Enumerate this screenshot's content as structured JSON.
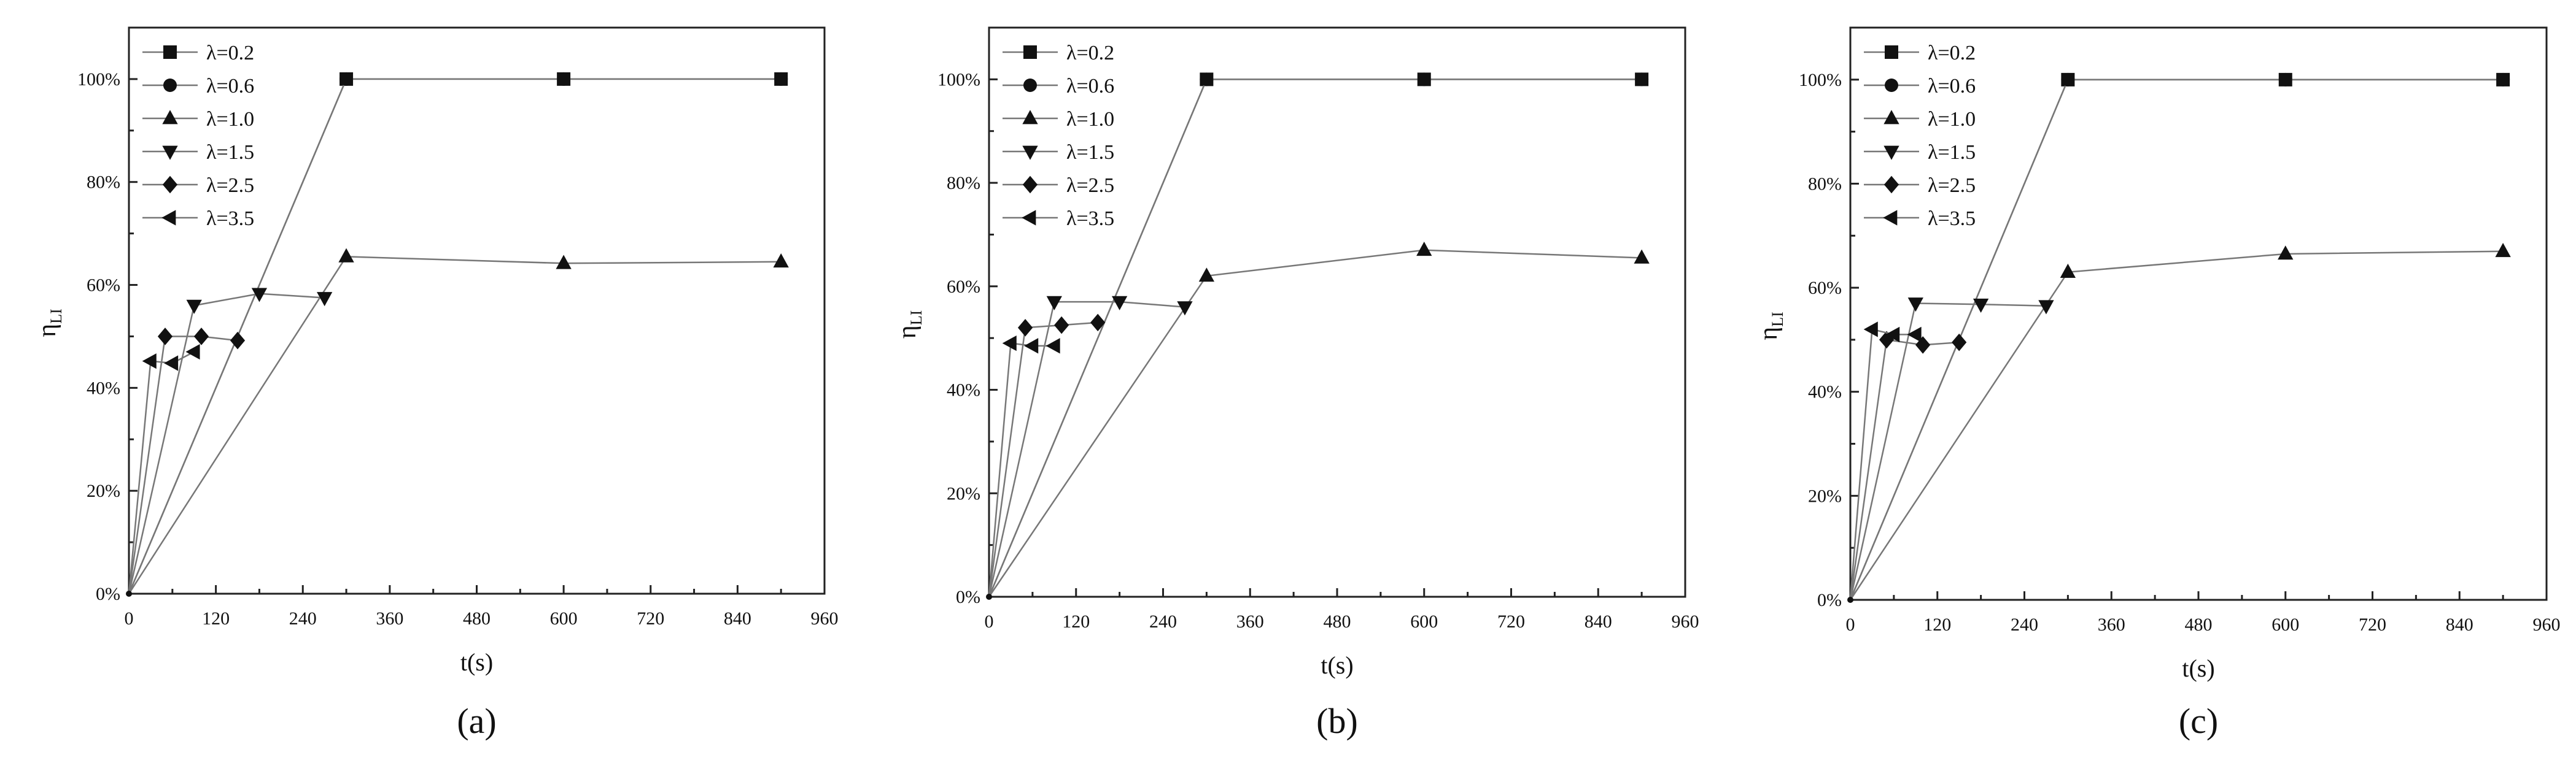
{
  "chart_data": [
    {
      "panel_label": "(a)",
      "type": "line",
      "xlabel": "t(s)",
      "ylabel": "η_LI",
      "ylabel_main": "η",
      "ylabel_sub": "LI",
      "xlim": [
        0,
        960
      ],
      "ylim": [
        0,
        1.1
      ],
      "x_ticks": [
        "0",
        "120",
        "240",
        "360",
        "480",
        "600",
        "720",
        "840",
        "960"
      ],
      "y_ticks": [
        "0%",
        "20%",
        "40%",
        "60%",
        "80%",
        "100%"
      ],
      "grid": false,
      "legend_position": "top-left",
      "series": [
        {
          "name": "λ=0.2",
          "marker": "square",
          "points": [
            [
              0,
              0
            ],
            [
              300,
              1.0
            ],
            [
              600,
              1.0
            ],
            [
              900,
              1.0
            ]
          ]
        },
        {
          "name": "λ=0.6",
          "marker": "circle",
          "points": [
            [
              0,
              0
            ],
            [
              300,
              1.0
            ],
            [
              600,
              1.0
            ],
            [
              900,
              1.0
            ]
          ]
        },
        {
          "name": "λ=1.0",
          "marker": "triangle-up",
          "points": [
            [
              0,
              0
            ],
            [
              300,
              0.655
            ],
            [
              600,
              0.642
            ],
            [
              900,
              0.645
            ]
          ]
        },
        {
          "name": "λ=1.5",
          "marker": "triangle-down",
          "points": [
            [
              0,
              0
            ],
            [
              90,
              0.56
            ],
            [
              180,
              0.583
            ],
            [
              270,
              0.575
            ]
          ]
        },
        {
          "name": "λ=2.5",
          "marker": "diamond",
          "points": [
            [
              0,
              0
            ],
            [
              50,
              0.5
            ],
            [
              100,
              0.5
            ],
            [
              150,
              0.492
            ]
          ]
        },
        {
          "name": "λ=3.5",
          "marker": "triangle-left",
          "points": [
            [
              0,
              0
            ],
            [
              30,
              0.452
            ],
            [
              60,
              0.448
            ],
            [
              90,
              0.47
            ]
          ]
        }
      ]
    },
    {
      "panel_label": "(b)",
      "type": "line",
      "xlabel": "t(s)",
      "ylabel": "η_LI",
      "ylabel_main": "η",
      "ylabel_sub": "LI",
      "xlim": [
        0,
        960
      ],
      "ylim": [
        0,
        1.1
      ],
      "x_ticks": [
        "0",
        "120",
        "240",
        "360",
        "480",
        "600",
        "720",
        "840",
        "960"
      ],
      "y_ticks": [
        "0%",
        "20%",
        "40%",
        "60%",
        "80%",
        "100%"
      ],
      "grid": false,
      "legend_position": "top-left",
      "series": [
        {
          "name": "λ=0.2",
          "marker": "square",
          "points": [
            [
              0,
              0
            ],
            [
              300,
              1.0
            ],
            [
              600,
              1.0
            ],
            [
              900,
              1.0
            ]
          ]
        },
        {
          "name": "λ=0.6",
          "marker": "circle",
          "points": [
            [
              0,
              0
            ],
            [
              300,
              1.0
            ],
            [
              600,
              1.0
            ],
            [
              900,
              1.0
            ]
          ]
        },
        {
          "name": "λ=1.0",
          "marker": "triangle-up",
          "points": [
            [
              0,
              0
            ],
            [
              300,
              0.62
            ],
            [
              600,
              0.67
            ],
            [
              900,
              0.655
            ]
          ]
        },
        {
          "name": "λ=1.5",
          "marker": "triangle-down",
          "points": [
            [
              0,
              0
            ],
            [
              90,
              0.57
            ],
            [
              180,
              0.57
            ],
            [
              270,
              0.56
            ]
          ]
        },
        {
          "name": "λ=2.5",
          "marker": "diamond",
          "points": [
            [
              0,
              0
            ],
            [
              50,
              0.52
            ],
            [
              100,
              0.525
            ],
            [
              150,
              0.53
            ]
          ]
        },
        {
          "name": "λ=3.5",
          "marker": "triangle-left",
          "points": [
            [
              0,
              0
            ],
            [
              30,
              0.49
            ],
            [
              60,
              0.485
            ],
            [
              90,
              0.485
            ]
          ]
        }
      ]
    },
    {
      "panel_label": "(c)",
      "type": "line",
      "xlabel": "t(s)",
      "ylabel": "η_LI",
      "ylabel_main": "η",
      "ylabel_sub": "LI",
      "xlim": [
        0,
        960
      ],
      "ylim": [
        0,
        1.1
      ],
      "x_ticks": [
        "0",
        "120",
        "240",
        "360",
        "480",
        "600",
        "720",
        "840",
        "960"
      ],
      "y_ticks": [
        "0%",
        "20%",
        "40%",
        "60%",
        "80%",
        "100%"
      ],
      "grid": false,
      "legend_position": "top-left",
      "series": [
        {
          "name": "λ=0.2",
          "marker": "square",
          "points": [
            [
              0,
              0
            ],
            [
              300,
              1.0
            ],
            [
              600,
              1.0
            ],
            [
              900,
              1.0
            ]
          ]
        },
        {
          "name": "λ=0.6",
          "marker": "circle",
          "points": [
            [
              0,
              0
            ],
            [
              300,
              1.0
            ],
            [
              600,
              1.0
            ],
            [
              900,
              1.0
            ]
          ]
        },
        {
          "name": "λ=1.0",
          "marker": "triangle-up",
          "points": [
            [
              0,
              0
            ],
            [
              300,
              0.63
            ],
            [
              600,
              0.665
            ],
            [
              900,
              0.67
            ]
          ]
        },
        {
          "name": "λ=1.5",
          "marker": "triangle-down",
          "points": [
            [
              0,
              0
            ],
            [
              90,
              0.57
            ],
            [
              180,
              0.568
            ],
            [
              270,
              0.565
            ]
          ]
        },
        {
          "name": "λ=2.5",
          "marker": "diamond",
          "points": [
            [
              0,
              0
            ],
            [
              50,
              0.5
            ],
            [
              100,
              0.49
            ],
            [
              150,
              0.495
            ]
          ]
        },
        {
          "name": "λ=3.5",
          "marker": "triangle-left",
          "points": [
            [
              0,
              0
            ],
            [
              30,
              0.52
            ],
            [
              60,
              0.51
            ],
            [
              90,
              0.51
            ]
          ]
        }
      ]
    }
  ]
}
